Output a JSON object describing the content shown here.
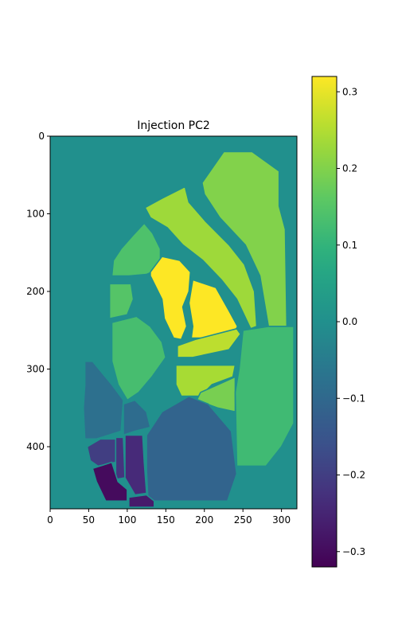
{
  "chart_data": {
    "type": "heatmap",
    "title": "Injection PC2",
    "xlabel": "",
    "ylabel": "",
    "xlim": [
      0,
      320
    ],
    "ylim": [
      480,
      0
    ],
    "x_ticks": [
      0,
      50,
      100,
      150,
      200,
      250,
      300
    ],
    "y_ticks": [
      0,
      100,
      200,
      300,
      400
    ],
    "colormap": "viridis",
    "colorbar": {
      "vmin": -0.32,
      "vmax": 0.32,
      "ticks": [
        -0.3,
        -0.2,
        -0.1,
        0.0,
        0.1,
        0.2,
        0.3
      ],
      "tick_labels": [
        "−0.3",
        "−0.2",
        "−0.1",
        "0.0",
        "0.1",
        "0.2",
        "0.3"
      ]
    },
    "background_value": 0.0,
    "grid": false,
    "regions": [
      {
        "value": 0.2,
        "points": [
          [
            225,
            20
          ],
          [
            262,
            20
          ],
          [
            297,
            45
          ],
          [
            297,
            90
          ],
          [
            305,
            120
          ],
          [
            307,
            245
          ],
          [
            283,
            245
          ],
          [
            272,
            180
          ],
          [
            253,
            140
          ],
          [
            220,
            105
          ],
          [
            200,
            75
          ],
          [
            197,
            60
          ]
        ]
      },
      {
        "value": 0.23,
        "points": [
          [
            175,
            65
          ],
          [
            180,
            85
          ],
          [
            202,
            110
          ],
          [
            232,
            140
          ],
          [
            252,
            165
          ],
          [
            265,
            200
          ],
          [
            268,
            245
          ],
          [
            260,
            248
          ],
          [
            242,
            210
          ],
          [
            222,
            185
          ],
          [
            198,
            160
          ],
          [
            172,
            140
          ],
          [
            152,
            118
          ],
          [
            130,
            105
          ],
          [
            123,
            92
          ],
          [
            145,
            80
          ]
        ]
      },
      {
        "value": 0.14,
        "points": [
          [
            122,
            112
          ],
          [
            133,
            125
          ],
          [
            143,
            145
          ],
          [
            143,
            170
          ],
          [
            125,
            178
          ],
          [
            102,
            180
          ],
          [
            80,
            180
          ],
          [
            82,
            160
          ],
          [
            92,
            145
          ],
          [
            107,
            128
          ]
        ]
      },
      {
        "value": 0.32,
        "points": [
          [
            145,
            155
          ],
          [
            168,
            160
          ],
          [
            182,
            175
          ],
          [
            180,
            200
          ],
          [
            172,
            220
          ],
          [
            177,
            245
          ],
          [
            170,
            262
          ],
          [
            160,
            260
          ],
          [
            148,
            235
          ],
          [
            145,
            210
          ],
          [
            130,
            180
          ],
          [
            130,
            175
          ]
        ]
      },
      {
        "value": 0.32,
        "points": [
          [
            185,
            185
          ],
          [
            215,
            195
          ],
          [
            232,
            225
          ],
          [
            243,
            245
          ],
          [
            238,
            255
          ],
          [
            200,
            260
          ],
          [
            183,
            260
          ],
          [
            185,
            245
          ],
          [
            180,
            215
          ]
        ]
      },
      {
        "value": 0.15,
        "points": [
          [
            77,
            190
          ],
          [
            105,
            190
          ],
          [
            108,
            210
          ],
          [
            100,
            230
          ],
          [
            77,
            235
          ]
        ]
      },
      {
        "value": 0.26,
        "points": [
          [
            165,
            270
          ],
          [
            188,
            262
          ],
          [
            242,
            248
          ],
          [
            247,
            255
          ],
          [
            232,
            275
          ],
          [
            185,
            285
          ],
          [
            165,
            285
          ]
        ]
      },
      {
        "value": 0.13,
        "points": [
          [
            80,
            240
          ],
          [
            112,
            232
          ],
          [
            130,
            245
          ],
          [
            145,
            265
          ],
          [
            150,
            285
          ],
          [
            132,
            310
          ],
          [
            115,
            330
          ],
          [
            100,
            340
          ],
          [
            88,
            320
          ],
          [
            80,
            290
          ]
        ]
      },
      {
        "value": 0.24,
        "points": [
          [
            163,
            295
          ],
          [
            190,
            295
          ],
          [
            240,
            295
          ],
          [
            237,
            310
          ],
          [
            210,
            320
          ],
          [
            195,
            335
          ],
          [
            170,
            335
          ],
          [
            163,
            320
          ]
        ]
      },
      {
        "value": 0.19,
        "points": [
          [
            195,
            330
          ],
          [
            222,
            318
          ],
          [
            240,
            310
          ],
          [
            240,
            355
          ],
          [
            217,
            350
          ],
          [
            190,
            340
          ]
        ]
      },
      {
        "value": 0.12,
        "points": [
          [
            250,
            250
          ],
          [
            283,
            245
          ],
          [
            316,
            245
          ],
          [
            316,
            370
          ],
          [
            300,
            400
          ],
          [
            280,
            425
          ],
          [
            242,
            425
          ],
          [
            240,
            330
          ],
          [
            245,
            300
          ]
        ]
      },
      {
        "value": -0.08,
        "points": [
          [
            45,
            290
          ],
          [
            55,
            290
          ],
          [
            80,
            320
          ],
          [
            95,
            340
          ],
          [
            92,
            380
          ],
          [
            60,
            390
          ],
          [
            45,
            390
          ],
          [
            43,
            350
          ],
          [
            45,
            320
          ]
        ]
      },
      {
        "value": -0.09,
        "points": [
          [
            95,
            345
          ],
          [
            110,
            340
          ],
          [
            125,
            355
          ],
          [
            130,
            375
          ],
          [
            110,
            380
          ],
          [
            95,
            385
          ]
        ]
      },
      {
        "value": -0.11,
        "points": [
          [
            125,
            385
          ],
          [
            145,
            355
          ],
          [
            180,
            335
          ],
          [
            205,
            345
          ],
          [
            235,
            380
          ],
          [
            242,
            435
          ],
          [
            230,
            470
          ],
          [
            180,
            470
          ],
          [
            127,
            470
          ],
          [
            125,
            430
          ]
        ]
      },
      {
        "value": -0.2,
        "points": [
          [
            48,
            400
          ],
          [
            65,
            390
          ],
          [
            85,
            390
          ],
          [
            85,
            420
          ],
          [
            62,
            425
          ],
          [
            52,
            418
          ]
        ]
      },
      {
        "value": -0.22,
        "points": [
          [
            85,
            388
          ],
          [
            95,
            388
          ],
          [
            97,
            440
          ],
          [
            85,
            442
          ]
        ]
      },
      {
        "value": -0.24,
        "points": [
          [
            97,
            385
          ],
          [
            120,
            385
          ],
          [
            122,
            420
          ],
          [
            125,
            460
          ],
          [
            110,
            462
          ],
          [
            97,
            440
          ]
        ]
      },
      {
        "value": -0.3,
        "points": [
          [
            55,
            428
          ],
          [
            80,
            420
          ],
          [
            88,
            445
          ],
          [
            100,
            455
          ],
          [
            100,
            470
          ],
          [
            72,
            470
          ],
          [
            60,
            445
          ]
        ]
      },
      {
        "value": -0.27,
        "points": [
          [
            102,
            465
          ],
          [
            125,
            462
          ],
          [
            135,
            470
          ],
          [
            135,
            478
          ],
          [
            102,
            478
          ]
        ]
      }
    ]
  }
}
